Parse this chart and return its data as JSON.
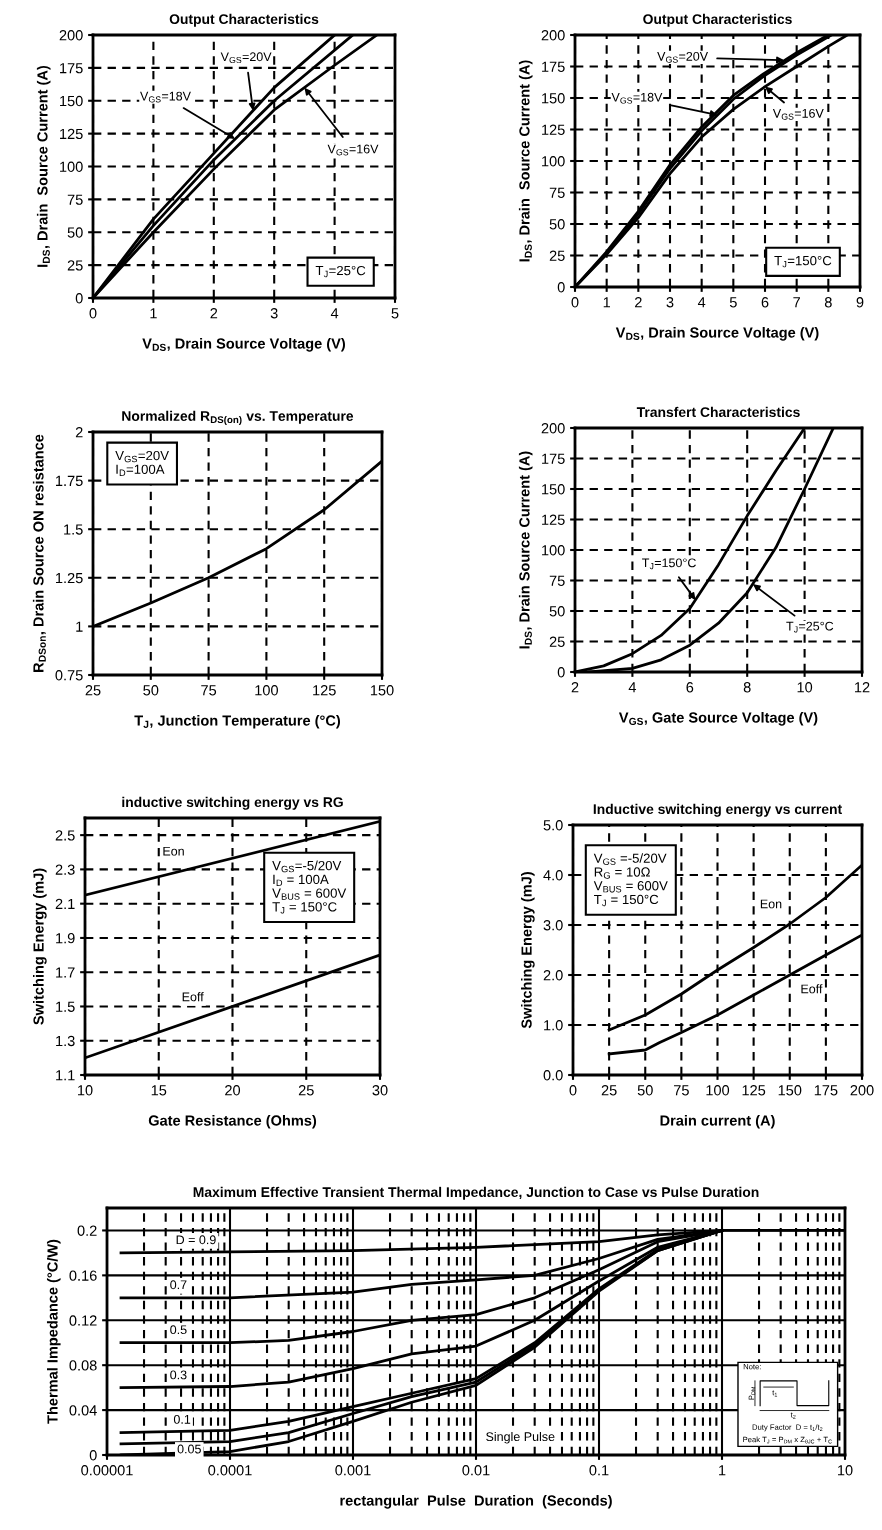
{
  "chart_data": [
    {
      "type": "line",
      "title": "Output Characteristics",
      "xlabel": "V$_{DS}$, Drain Source Voltage (V)",
      "ylabel": "I$_{DS}$, Drain  Source Current (A)",
      "xlim": [
        0,
        5
      ],
      "ylim": [
        0,
        200
      ],
      "xticks": [
        0,
        1,
        2,
        3,
        4,
        5
      ],
      "yticks": [
        0,
        25,
        50,
        75,
        100,
        125,
        150,
        175,
        200
      ],
      "grid": true,
      "series": [
        {
          "color": "#000000",
          "x": [
            0,
            1,
            2,
            3,
            4
          ],
          "values": [
            0,
            60,
            110,
            160,
            200
          ]
        },
        {
          "color": "#000000",
          "x": [
            0,
            1,
            2,
            3,
            4.3
          ],
          "values": [
            0,
            55,
            105,
            150,
            200
          ]
        },
        {
          "color": "#000000",
          "x": [
            0,
            1,
            2,
            3,
            4,
            4.7
          ],
          "values": [
            0,
            50,
            98,
            143,
            177,
            200
          ]
        }
      ],
      "annotations": [
        {
          "text": "V$_{GS}$=20V",
          "x": 2.65,
          "y": 142.5
        },
        {
          "text": "V$_{GS}$=18V",
          "x": 2.35,
          "y": 121
        },
        {
          "text": "V$_{GS}$=16V",
          "x": 3.5,
          "y": 160
        },
        "T$_{J}$=25°C"
      ]
    },
    {
      "type": "line",
      "title": "Output Characteristics",
      "xlabel": "V$_{DS}$, Drain Source Voltage (V)",
      "ylabel": "I$_{DS}$, Drain  Source Current (A)",
      "xlim": [
        0,
        9
      ],
      "ylim": [
        0,
        200
      ],
      "xticks": [
        0,
        1,
        2,
        3,
        4,
        5,
        6,
        7,
        8,
        9
      ],
      "yticks": [
        0,
        25,
        50,
        75,
        100,
        125,
        150,
        175,
        200
      ],
      "grid": true,
      "series": [
        {
          "color": "#000000",
          "x": [
            0,
            1,
            2,
            3,
            4,
            5,
            6,
            7,
            8
          ],
          "values": [
            0,
            28,
            60,
            97,
            127,
            152,
            170,
            186,
            200
          ]
        },
        {
          "color": "#000000",
          "x": [
            0,
            1,
            2,
            3,
            4,
            5,
            6,
            7,
            8.1
          ],
          "values": [
            0,
            27,
            58,
            94,
            124,
            149,
            168,
            184,
            200
          ]
        },
        {
          "color": "#000000",
          "x": [
            0,
            1,
            2,
            3,
            4,
            5,
            6,
            7,
            8,
            8.6
          ],
          "values": [
            0,
            26,
            55,
            90,
            119,
            141,
            159,
            175,
            191,
            200
          ]
        }
      ],
      "annotations": [
        {
          "text": "V$_{GS}$=20V",
          "x": 6.6,
          "y": 180
        },
        {
          "text": "V$_{GS}$=18V",
          "x": 4.5,
          "y": 136.5
        },
        {
          "text": "V$_{GS}$=16V",
          "x": 6.0,
          "y": 159
        },
        "T$_{J}$=150°C"
      ]
    },
    {
      "type": "line",
      "title": "Normalized R$_{DS(on)}$ vs. Temperature",
      "xlabel": "T$_{J}$, Junction Temperature (°C)",
      "ylabel": "R$_{DSon}$, Drain Source ON resistance",
      "xlim": [
        25,
        150
      ],
      "ylim": [
        0.75,
        2
      ],
      "xticks": [
        25,
        50,
        75,
        100,
        125,
        150
      ],
      "yticks": [
        0.75,
        1,
        1.25,
        1.5,
        1.75,
        2
      ],
      "grid": true,
      "series": [
        {
          "color": "#000000",
          "x": [
            25,
            50,
            75,
            100,
            125,
            150
          ],
          "values": [
            1.0,
            1.12,
            1.25,
            1.4,
            1.6,
            1.85
          ]
        }
      ],
      "annotations": [
        "V$_{GS}$=20V\nI$_{D}$=100A"
      ]
    },
    {
      "type": "line",
      "title": "Transfert Characteristics",
      "xlabel": "V$_{GS}$, Gate Source Voltage (V)",
      "ylabel": "I$_{DS}$, Drain Source Current (A)",
      "xlim": [
        2,
        12
      ],
      "ylim": [
        0,
        200
      ],
      "xticks": [
        2,
        4,
        6,
        8,
        10,
        12
      ],
      "yticks": [
        0,
        25,
        50,
        75,
        100,
        125,
        150,
        175,
        200
      ],
      "grid": true,
      "series": [
        {
          "color": "#000000",
          "x": [
            2,
            3,
            4,
            5,
            6,
            7,
            8,
            9,
            10
          ],
          "values": [
            0,
            5,
            15,
            30,
            52,
            88,
            128,
            165,
            200
          ]
        },
        {
          "color": "#000000",
          "x": [
            2.5,
            4,
            5,
            6,
            7,
            8,
            9,
            10,
            11
          ],
          "values": [
            0,
            3,
            10,
            22,
            40,
            65,
            102,
            150,
            200
          ]
        }
      ],
      "annotations": [
        {
          "text": "T$_{J}$=150°C",
          "x": 6.2,
          "y": 59
        },
        {
          "text": "T$_{J}$=25°C",
          "x": 8.2,
          "y": 72
        }
      ]
    },
    {
      "type": "line",
      "title": "inductive switching energy vs RG",
      "xlabel": "Gate Resistance (Ohms)",
      "ylabel": "Switching Energy (mJ)",
      "xlim": [
        10,
        30
      ],
      "ylim": [
        1.1,
        2.6
      ],
      "xticks": [
        10,
        15,
        20,
        25,
        30
      ],
      "yticks": [
        1.1,
        1.3,
        1.5,
        1.7,
        1.9,
        2.1,
        2.3,
        2.5
      ],
      "grid": true,
      "series": [
        {
          "color": "#000000",
          "x": [
            10,
            30
          ],
          "values": [
            2.15,
            2.58
          ]
        },
        {
          "color": "#000000",
          "x": [
            10,
            30
          ],
          "values": [
            1.2,
            1.8
          ]
        }
      ],
      "annotations": [
        {
          "text": "Eon",
          "x": 16,
          "y": 2.4
        },
        {
          "text": "Eoff",
          "x": 17.3,
          "y": 1.55
        },
        "V$_{GS}$=-5/20V\nI$_{D}$ = 100A\nV$_{BUS}$ = 600V\nT$_{J}$ = 150°C"
      ]
    },
    {
      "type": "line",
      "title": "Inductive switching energy vs current",
      "xlabel": "Drain current (A)",
      "ylabel": "Switching Energy (mJ)",
      "xlim": [
        0,
        200
      ],
      "ylim": [
        0,
        5
      ],
      "xticks": [
        0,
        25,
        50,
        75,
        100,
        125,
        150,
        175,
        200
      ],
      "yticks": [
        {
          "value": 0,
          "label": "0.0"
        },
        {
          "value": 1,
          "label": "1.0"
        },
        {
          "value": 2,
          "label": "2.0"
        },
        {
          "value": 3,
          "label": "3.0"
        },
        {
          "value": 4,
          "label": "4.0"
        },
        {
          "value": 5,
          "label": "5.0"
        }
      ],
      "grid": true,
      "series": [
        {
          "color": "#000000",
          "x": [
            25,
            50,
            75,
            100,
            125,
            150,
            175,
            200
          ],
          "values": [
            0.9,
            1.2,
            1.62,
            2.1,
            2.55,
            3.02,
            3.55,
            4.2
          ]
        },
        {
          "color": "#000000",
          "x": [
            25,
            50,
            60,
            75,
            100,
            125,
            150,
            175,
            200
          ],
          "values": [
            0.42,
            0.5,
            0.65,
            0.85,
            1.2,
            1.6,
            2.0,
            2.4,
            2.8
          ]
        }
      ],
      "annotations": [
        {
          "text": "Eon",
          "x": 137,
          "y": 3.4
        },
        {
          "text": "Eoff",
          "x": 165,
          "y": 1.7
        },
        "V$_{GS}$ =-5/20V\nR$_{G}$ = 10Ω\nV$_{BUS}$ = 600V\nT$_{J}$ = 150°C"
      ]
    },
    {
      "type": "line",
      "log": "x",
      "title": "Maximum Effective Transient Thermal Impedance, Junction to Case vs Pulse Duration",
      "xlabel": "rectangular  Pulse  Duration  (Seconds)",
      "ylabel": "Thermal Impedance (°C/W)",
      "xlim": [
        1e-05,
        10
      ],
      "ylim": [
        0,
        0.22
      ],
      "xticks": [
        {
          "value": 1e-05,
          "label": "0.00001"
        },
        {
          "value": 0.0001,
          "label": "0.0001"
        },
        {
          "value": 0.001,
          "label": "0.001"
        },
        {
          "value": 0.01,
          "label": "0.01"
        },
        {
          "value": 0.1,
          "label": "0.1"
        },
        {
          "value": 1,
          "label": "1"
        },
        {
          "value": 10,
          "label": "10"
        }
      ],
      "yticks": [
        0,
        0.04,
        0.08,
        0.12,
        0.16,
        0.2
      ],
      "grid": true,
      "series": [
        {
          "color": "#000000",
          "x": [
            1.3e-05,
            0.0001,
            0.001,
            0.01,
            0.1,
            0.3,
            1,
            10
          ],
          "values": [
            0.18,
            0.181,
            0.182,
            0.185,
            0.19,
            0.196,
            0.2,
            0.2
          ]
        },
        {
          "color": "#000000",
          "x": [
            1.3e-05,
            0.0001,
            0.001,
            0.003,
            0.01,
            0.03,
            0.1,
            0.3,
            1
          ],
          "values": [
            0.14,
            0.14,
            0.145,
            0.152,
            0.156,
            0.16,
            0.175,
            0.192,
            0.2
          ]
        },
        {
          "color": "#000000",
          "x": [
            1.3e-05,
            0.0001,
            0.0003,
            0.001,
            0.003,
            0.01,
            0.03,
            0.1,
            0.3,
            1
          ],
          "values": [
            0.1,
            0.1,
            0.102,
            0.11,
            0.12,
            0.125,
            0.14,
            0.165,
            0.19,
            0.2
          ]
        },
        {
          "color": "#000000",
          "x": [
            1.3e-05,
            0.0001,
            0.0003,
            0.001,
            0.003,
            0.01,
            0.03,
            0.1,
            0.3,
            1
          ],
          "values": [
            0.06,
            0.061,
            0.065,
            0.077,
            0.09,
            0.097,
            0.12,
            0.155,
            0.185,
            0.2
          ]
        },
        {
          "color": "#000000",
          "x": [
            1.3e-05,
            0.0001,
            0.0003,
            0.001,
            0.003,
            0.01,
            0.03,
            0.1,
            0.3,
            1
          ],
          "values": [
            0.02,
            0.022,
            0.03,
            0.043,
            0.055,
            0.068,
            0.1,
            0.148,
            0.183,
            0.2
          ]
        },
        {
          "color": "#000000",
          "x": [
            1.3e-05,
            0.0001,
            0.0003,
            0.001,
            0.003,
            0.01,
            0.03,
            0.1,
            0.3,
            1
          ],
          "values": [
            0.01,
            0.012,
            0.02,
            0.037,
            0.052,
            0.065,
            0.098,
            0.147,
            0.182,
            0.2
          ]
        },
        {
          "color": "#000000",
          "x": [
            1.3e-05,
            0.0001,
            0.0003,
            0.001,
            0.003,
            0.01,
            0.03,
            0.1,
            0.3,
            1
          ],
          "values": [
            0.0,
            0.003,
            0.012,
            0.03,
            0.047,
            0.062,
            0.096,
            0.146,
            0.182,
            0.2
          ]
        }
      ],
      "annotations": [
        "D = 0.9",
        "0.7",
        "0.5",
        "0.3",
        "0.1",
        "0.05",
        "Single Pulse",
        "Note:",
        "P$_{DM}$",
        "t$_{1}$",
        "t$_{2}$",
        "Duty Factor  D = t$_{1}$/t$_{2}$",
        "Peak T$_{J}$ = P$_{DM}$ x Z$_{θJC}$ + T$_{C}$"
      ]
    }
  ]
}
